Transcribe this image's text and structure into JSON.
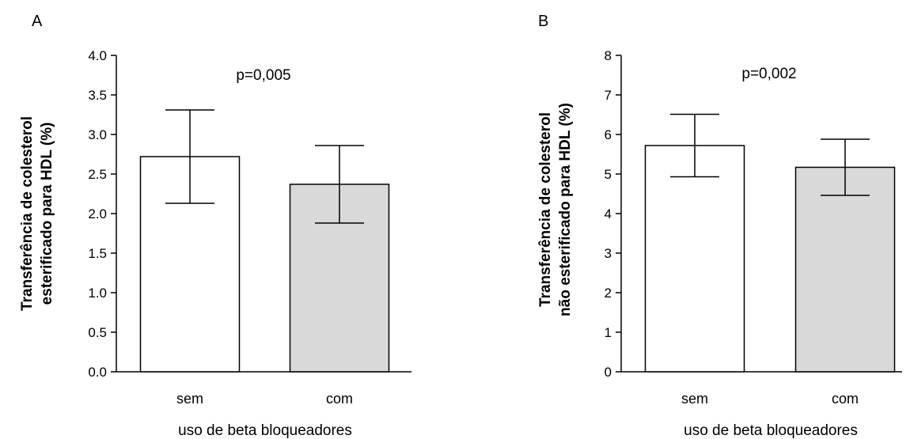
{
  "figure": {
    "background": "#ffffff"
  },
  "chart_data": [
    {
      "type": "bar",
      "panel": "A",
      "title": "",
      "annotation": "p=0,005",
      "categories": [
        "sem",
        "com"
      ],
      "values": [
        2.72,
        2.37
      ],
      "errors": [
        0.59,
        0.49
      ],
      "bar_colors": [
        "#ffffff",
        "#d9d9d9"
      ],
      "xlabel": "uso de beta bloqueadores",
      "ylabel_lines": [
        "Transferência de colesterol",
        "esterificado para HDL (%)"
      ],
      "ylim": [
        0,
        4
      ],
      "yticks": [
        "0.0",
        "0.5",
        "1.0",
        "1.5",
        "2.0",
        "2.5",
        "3.0",
        "3.5",
        "4.0"
      ],
      "grid": false
    },
    {
      "type": "bar",
      "panel": "B",
      "title": "",
      "annotation": "p=0,002",
      "categories": [
        "sem",
        "com"
      ],
      "values": [
        5.72,
        5.17
      ],
      "errors": [
        0.79,
        0.71
      ],
      "bar_colors": [
        "#ffffff",
        "#d9d9d9"
      ],
      "xlabel": "uso de beta bloqueadores",
      "ylabel_lines": [
        "Transferência de colesterol",
        "não esterificado para HDL (%)"
      ],
      "ylim": [
        0,
        8
      ],
      "yticks": [
        "0",
        "1",
        "2",
        "3",
        "4",
        "5",
        "6",
        "7",
        "8"
      ],
      "grid": false
    }
  ]
}
